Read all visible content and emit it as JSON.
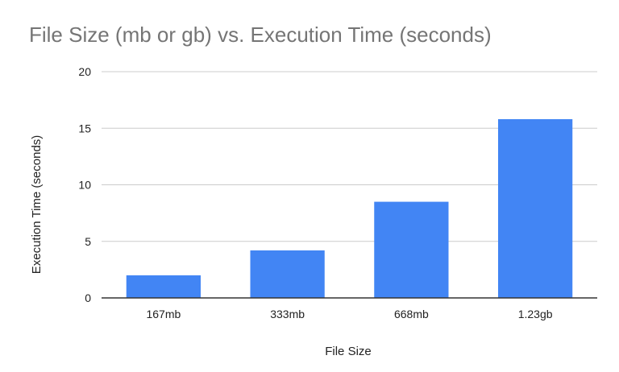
{
  "chart_data": {
    "type": "bar",
    "title": "File Size (mb or gb) vs. Execution Time (seconds)",
    "xlabel": "File Size",
    "ylabel": "Execution Time (seconds)",
    "categories": [
      "167mb",
      "333mb",
      "668mb",
      "1.23gb"
    ],
    "values": [
      2.0,
      4.2,
      8.5,
      15.8
    ],
    "ylim": [
      0,
      20
    ],
    "yticks": [
      "0",
      "5",
      "10",
      "15",
      "20"
    ],
    "grid": true,
    "legend": "none",
    "colors": {
      "bar": "#4285f4",
      "grid": "#cccccc",
      "axis": "#333333",
      "title": "#757575"
    }
  }
}
